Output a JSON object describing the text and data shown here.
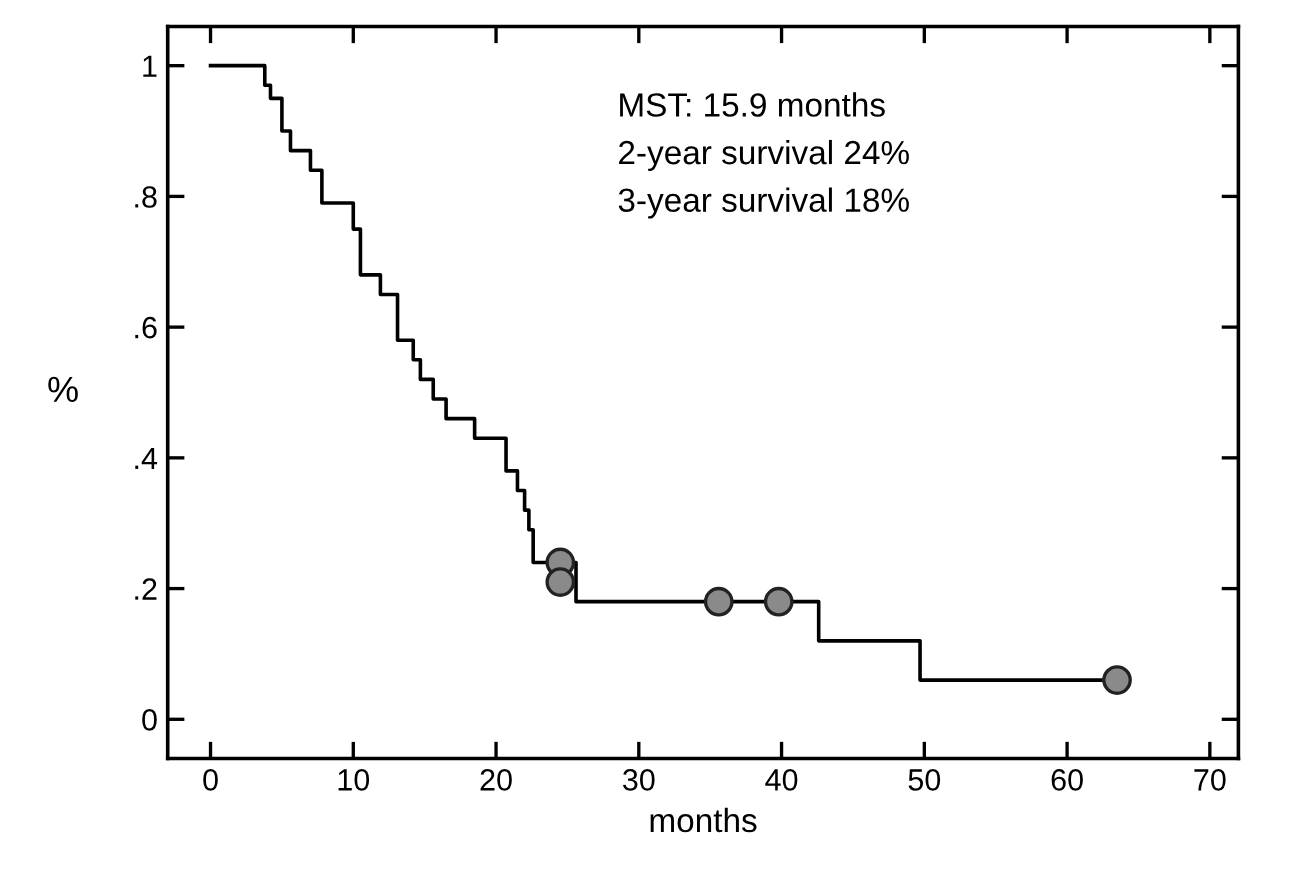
{
  "chart_data": {
    "type": "step",
    "xlabel": "months",
    "ylabel": "%",
    "annotations": [
      "MST: 15.9 months",
      "2-year survival 24%",
      "3-year survival 18%"
    ],
    "series": [
      {
        "color": "#000000",
        "line_style": "solid",
        "x": [
          0,
          3.8,
          4.2,
          5.0,
          5.6,
          7.0,
          7.8,
          10.0,
          10.5,
          11.9,
          13.1,
          14.2,
          14.7,
          15.6,
          16.5,
          18.5,
          20.7,
          21.5,
          22.0,
          22.3,
          22.6,
          25.6,
          42.6,
          49.7,
          63.5
        ],
        "values": [
          1.0,
          0.97,
          0.95,
          0.9,
          0.87,
          0.84,
          0.79,
          0.75,
          0.68,
          0.65,
          0.58,
          0.55,
          0.52,
          0.49,
          0.46,
          0.43,
          0.38,
          0.35,
          0.32,
          0.29,
          0.24,
          0.18,
          0.12,
          0.06,
          0.06
        ]
      },
      {
        "type": "scatter",
        "color": "#8a8a8a",
        "marker": "circle",
        "x": [
          24.5,
          24.5,
          35.6,
          39.8,
          63.5
        ],
        "values": [
          0.24,
          0.21,
          0.18,
          0.18,
          0.06
        ]
      }
    ],
    "xlim": [
      -3,
      72
    ],
    "xticks": [
      0,
      10,
      20,
      30,
      40,
      50,
      60,
      70
    ],
    "ylim": [
      -0.06,
      1.06
    ],
    "yticks": [
      0,
      {
        "value": 0.2,
        "label": ".2"
      },
      {
        "value": 0.4,
        "label": ".4"
      },
      {
        "value": 0.6,
        "label": ".6"
      },
      {
        "value": 0.8,
        "label": ".8"
      },
      1
    ],
    "grid": false,
    "legend": false
  }
}
